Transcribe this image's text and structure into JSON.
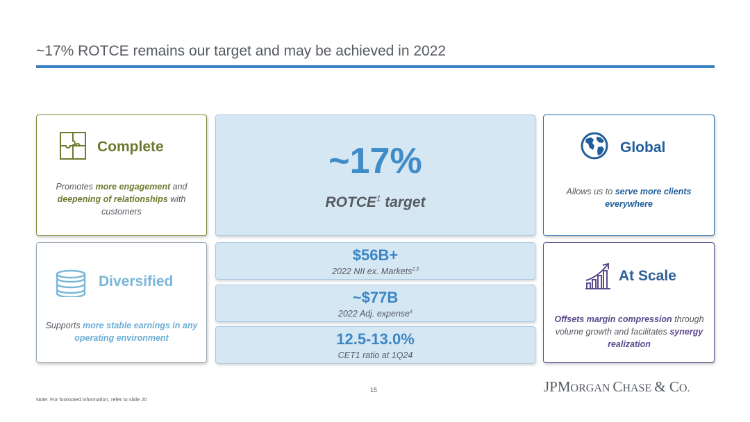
{
  "title": "~17% ROTCE remains our target and may be achieved in 2022",
  "cards": {
    "complete": {
      "title": "Complete",
      "desc": [
        "Promotes ",
        "more engagement",
        " and ",
        "deepening of relationships",
        " with customers"
      ]
    },
    "diversified": {
      "title": "Diversified",
      "desc": [
        "Supports ",
        "more stable earnings in any operating environment",
        ""
      ]
    },
    "global": {
      "title": "Global",
      "desc": [
        "Allows us to ",
        "serve more clients everywhere",
        ""
      ]
    },
    "scale": {
      "title": "At Scale",
      "desc": [
        "",
        "Offsets margin compression",
        " through volume growth and facilitates ",
        "synergy realization",
        ""
      ]
    }
  },
  "center": {
    "value": "~17%",
    "label": "ROTCE",
    "label_sup": "1",
    "label_suffix": " target"
  },
  "metrics": [
    {
      "value": "$56B+",
      "label": "2022 NII ex. Markets",
      "sup": "2,3"
    },
    {
      "value": "~$77B",
      "label": "2022 Adj. expense",
      "sup": "4"
    },
    {
      "value": "12.5-13.0%",
      "label": "CET1 ratio at 1Q24",
      "sup": ""
    }
  ],
  "footer": {
    "page_number": "15",
    "note": "Note: For footnoted information, refer to slide 20",
    "logo": {
      "p1": "JPM",
      "p2": "ORGAN ",
      "p3": "C",
      "p4": "HASE ",
      "p5": "&",
      "p6": " C",
      "p7": "O."
    }
  },
  "icons": {
    "complete": "puzzle-icon",
    "diversified": "stacked-coins-icon",
    "global": "globe-icon",
    "scale": "growth-chart-icon"
  },
  "colors": {
    "complete": "#6d7a30",
    "diversified": "#7ab6d8",
    "global": "#1f5e99",
    "scale": "#5b4a8c",
    "accent": "#3a82c4"
  }
}
